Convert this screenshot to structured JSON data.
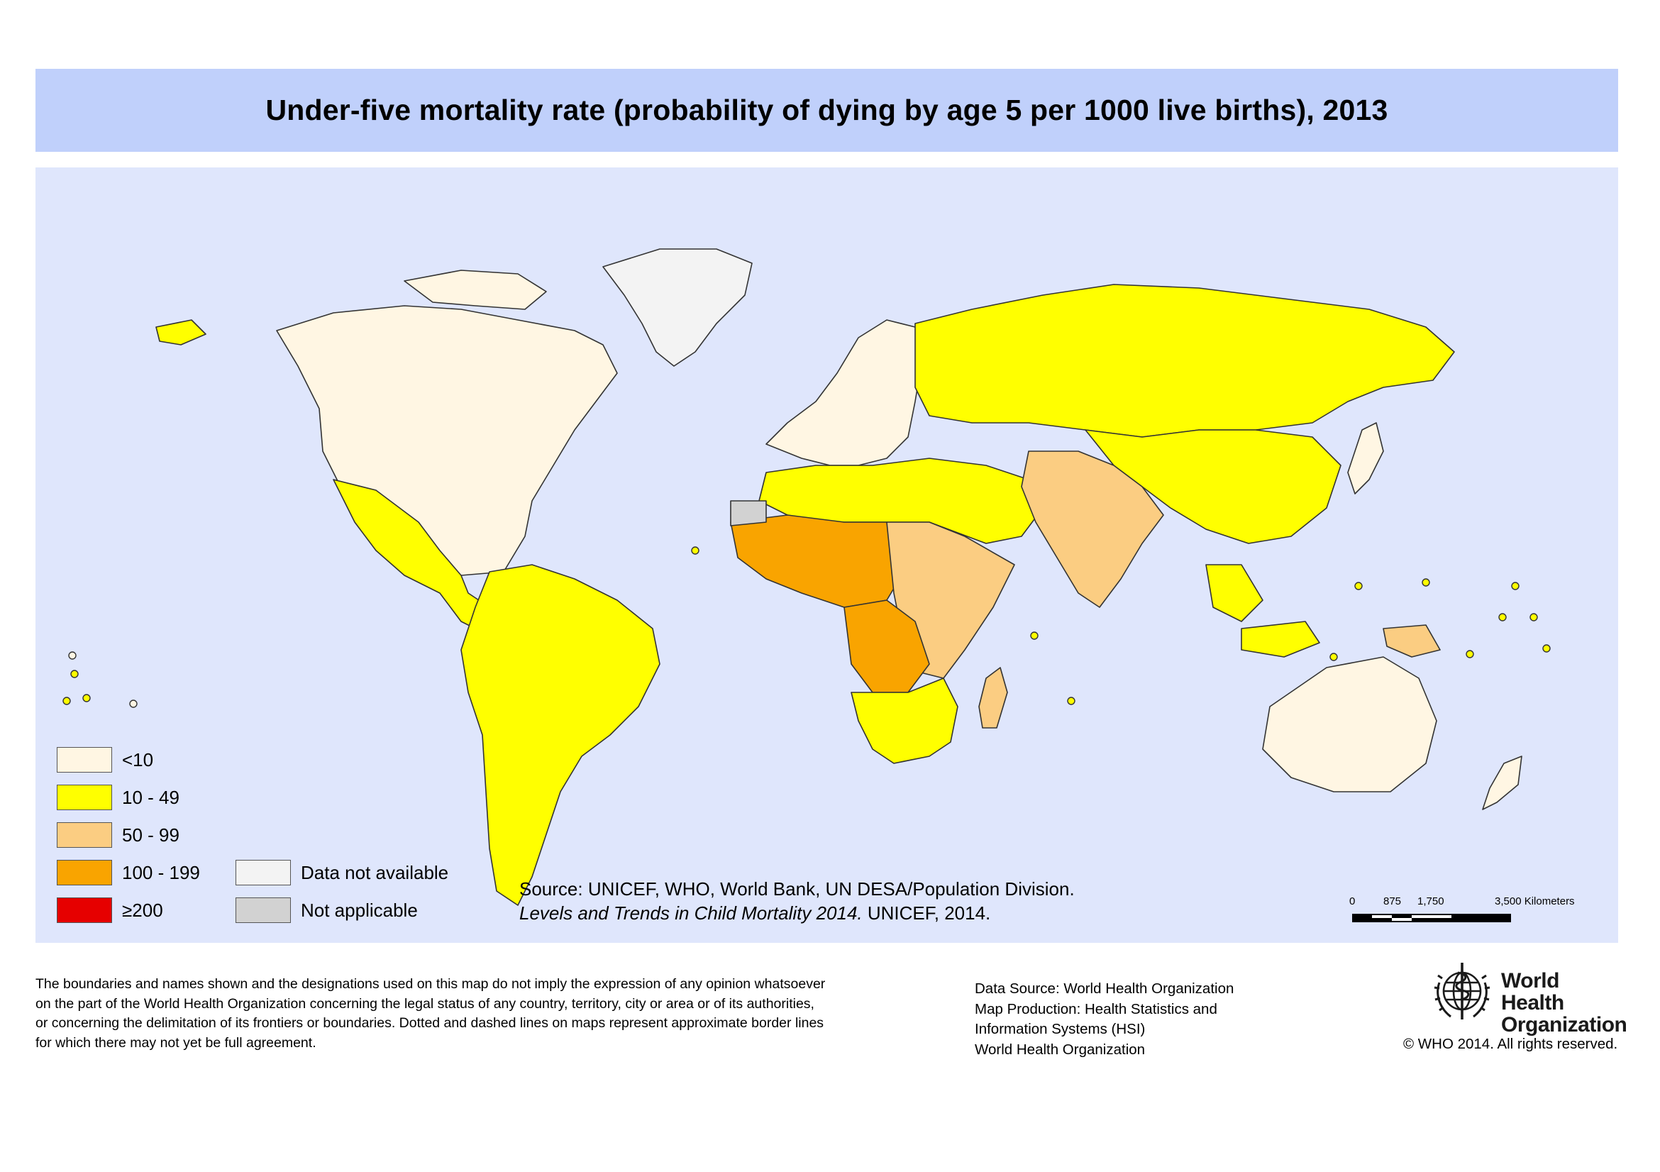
{
  "title": "Under-five mortality rate (probability of dying by age 5 per 1000 live births), 2013",
  "colors": {
    "title_band": "#c0d0fb",
    "ocean": "#dfe6fc",
    "land_border": "#333333"
  },
  "legend": [
    {
      "label": "<10",
      "color": "#fff6e3"
    },
    {
      "label": "10 - 49",
      "color": "#ffff00"
    },
    {
      "label": "50 - 99",
      "color": "#fbcd82"
    },
    {
      "label": "100 - 199",
      "color": "#f9a400"
    },
    {
      "label": "≥200",
      "color": "#e60000"
    },
    {
      "label": "Data not available",
      "color": "#f3f3f3"
    },
    {
      "label": "Not applicable",
      "color": "#d2d2d2"
    }
  ],
  "source": {
    "line1": "Source: UNICEF, WHO, World Bank, UN DESA/Population Division.",
    "line2_italic": "Levels and Trends in Child Mortality 2014.",
    "line2_rest": " UNICEF, 2014."
  },
  "scale": {
    "ticks": [
      "0",
      "875",
      "1,750",
      "3,500 Kilometers"
    ],
    "ticks_km": [
      0,
      875,
      1750,
      3500
    ]
  },
  "disclaimer": [
    "The boundaries and names shown and the designations used on this map do not imply the expression of any opinion whatsoever",
    "on the part of the World Health Organization concerning the legal status of any country, territory, city or area or of its authorities,",
    "or concerning the delimitation of its frontiers or boundaries. Dotted and dashed lines on maps represent approximate border lines",
    "for which there may not yet be full agreement."
  ],
  "credits": [
    "Data Source: World Health Organization",
    "Map Production: Health Statistics and",
    "Information Systems (HSI)",
    "World Health Organization"
  ],
  "who_logo": {
    "line1": "World Health",
    "line2": "Organization",
    "emblem_icon": "who-emblem-icon"
  },
  "copyright": "© WHO 2014. All rights reserved."
}
